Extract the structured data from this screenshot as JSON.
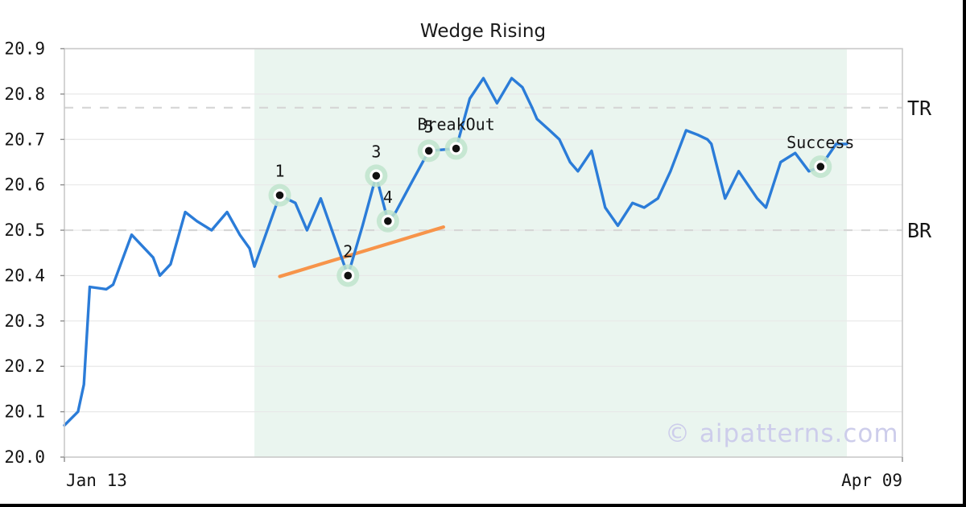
{
  "title": "Wedge Rising",
  "watermark": "© aipatterns.com",
  "colors": {
    "line": "#2b7cd8",
    "trendline": "#f7944a",
    "marker_halo": "#bfe4cc",
    "marker_ring": "#ffffff",
    "marker_dot": "#111111",
    "shaded_region": "#eaf5ef",
    "grid": "#e8e8e8",
    "dashed_level": "#d6d6d6",
    "spine": "#c9c9c9",
    "tick": "#8f8f8f",
    "text": "#151515",
    "watermark_color": "#cdcdeb",
    "frame_edge": "#000000"
  },
  "chart_data": {
    "type": "line",
    "title": "Wedge Rising",
    "xlabel": "",
    "ylabel": "",
    "x_axis": {
      "start_label": "Jan 13",
      "end_label": "Apr 09",
      "unit": "days",
      "range": [
        0,
        86
      ]
    },
    "y_axis": {
      "min": 20.0,
      "max": 20.9,
      "tick_step": 0.1,
      "tick_labels": [
        "20.0",
        "20.1",
        "20.2",
        "20.3",
        "20.4",
        "20.5",
        "20.6",
        "20.7",
        "20.8",
        "20.9"
      ]
    },
    "grid": true,
    "legend": false,
    "levels": [
      {
        "name": "TR",
        "value": 20.77
      },
      {
        "name": "BR",
        "value": 20.5
      }
    ],
    "pattern_region_days": [
      19.5,
      80.3
    ],
    "trendline": {
      "from": [
        22.1,
        20.398
      ],
      "to": [
        38.9,
        20.507
      ]
    },
    "series": [
      {
        "name": "price",
        "points": [
          [
            0.0,
            20.07
          ],
          [
            1.4,
            20.1
          ],
          [
            2.0,
            20.16
          ],
          [
            2.6,
            20.375
          ],
          [
            4.3,
            20.37
          ],
          [
            5.0,
            20.38
          ],
          [
            6.9,
            20.49
          ],
          [
            9.1,
            20.44
          ],
          [
            9.8,
            20.4
          ],
          [
            10.9,
            20.425
          ],
          [
            12.4,
            20.54
          ],
          [
            13.6,
            20.52
          ],
          [
            15.1,
            20.5
          ],
          [
            16.7,
            20.54
          ],
          [
            18.0,
            20.49
          ],
          [
            19.0,
            20.46
          ],
          [
            19.5,
            20.42
          ],
          [
            22.1,
            20.577
          ],
          [
            23.7,
            20.56
          ],
          [
            24.9,
            20.5
          ],
          [
            26.3,
            20.57
          ],
          [
            29.1,
            20.4
          ],
          [
            30.6,
            20.51
          ],
          [
            32.0,
            20.62
          ],
          [
            33.2,
            20.52
          ],
          [
            34.0,
            20.54
          ],
          [
            35.5,
            20.6
          ],
          [
            37.4,
            20.675
          ],
          [
            40.2,
            20.68
          ],
          [
            41.6,
            20.79
          ],
          [
            43.0,
            20.835
          ],
          [
            44.4,
            20.78
          ],
          [
            45.9,
            20.835
          ],
          [
            47.0,
            20.815
          ],
          [
            48.0,
            20.77
          ],
          [
            48.5,
            20.745
          ],
          [
            49.8,
            20.72
          ],
          [
            50.8,
            20.7
          ],
          [
            51.9,
            20.65
          ],
          [
            52.7,
            20.63
          ],
          [
            54.1,
            20.675
          ],
          [
            55.5,
            20.55
          ],
          [
            56.8,
            20.51
          ],
          [
            58.3,
            20.56
          ],
          [
            59.5,
            20.55
          ],
          [
            60.9,
            20.57
          ],
          [
            62.2,
            20.63
          ],
          [
            63.8,
            20.72
          ],
          [
            65.0,
            20.71
          ],
          [
            66.0,
            20.7
          ],
          [
            66.4,
            20.69
          ],
          [
            67.8,
            20.57
          ],
          [
            69.2,
            20.63
          ],
          [
            71.1,
            20.57
          ],
          [
            72.0,
            20.55
          ],
          [
            73.5,
            20.65
          ],
          [
            75.0,
            20.67
          ],
          [
            76.4,
            20.63
          ],
          [
            77.6,
            20.64
          ],
          [
            79.2,
            20.69
          ],
          [
            80.3,
            20.69
          ]
        ]
      }
    ],
    "annotations": [
      {
        "label": "1",
        "day": 22.1,
        "price": 20.577
      },
      {
        "label": "2",
        "day": 29.1,
        "price": 20.4
      },
      {
        "label": "3",
        "day": 32.0,
        "price": 20.62
      },
      {
        "label": "4",
        "day": 33.2,
        "price": 20.52
      },
      {
        "label": "5",
        "day": 37.4,
        "price": 20.675
      },
      {
        "label": "BreakOut",
        "day": 40.2,
        "price": 20.68
      },
      {
        "label": "Success",
        "day": 77.6,
        "price": 20.64
      }
    ]
  }
}
